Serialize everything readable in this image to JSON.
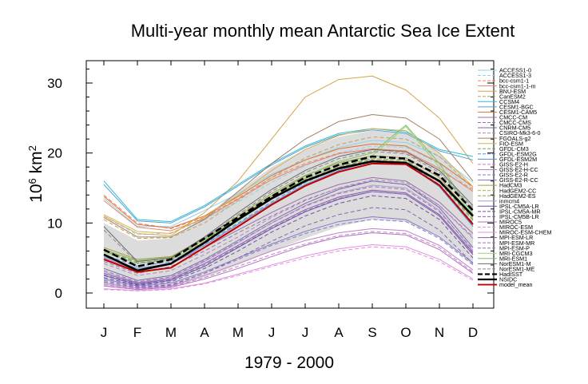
{
  "chart_data": {
    "type": "line",
    "title": "Multi-year monthly mean Antarctic Sea Ice Extent",
    "xlabel": "1979 - 2000",
    "ylabel": "10⁶ km²",
    "categories": [
      "J",
      "F",
      "M",
      "A",
      "M",
      "J",
      "J",
      "A",
      "S",
      "O",
      "N",
      "D"
    ],
    "yticks": [
      0,
      10,
      20,
      30
    ],
    "ylim": [
      0,
      30
    ],
    "legend_position": "right",
    "series": [
      {
        "name": "ACCESS1-0",
        "color": "#8fd3e8",
        "dash": false,
        "values": [
          13.5,
          9.5,
          9.5,
          11.8,
          14.2,
          17.0,
          19.0,
          20.8,
          21.8,
          21.5,
          19.5,
          15.8
        ]
      },
      {
        "name": "ACCESS1-3",
        "color": "#8fd3e8",
        "dash": true,
        "values": [
          11.0,
          8.3,
          8.6,
          10.5,
          13.0,
          15.8,
          18.2,
          20.0,
          21.0,
          20.8,
          18.5,
          14.5
        ]
      },
      {
        "name": "bcc-csm1-1",
        "color": "#e8856a",
        "dash": true,
        "values": [
          14.0,
          10.0,
          9.2,
          10.8,
          13.5,
          16.5,
          18.5,
          20.0,
          20.5,
          20.0,
          17.5,
          14.8
        ]
      },
      {
        "name": "bcc-csm1-1-m",
        "color": "#e8856a",
        "dash": false,
        "values": [
          13.2,
          9.4,
          8.9,
          10.6,
          13.4,
          16.2,
          18.3,
          19.9,
          20.6,
          20.3,
          17.8,
          14.5
        ]
      },
      {
        "name": "BNU-ESM",
        "color": "#d4a64a",
        "dash": false,
        "values": [
          11.0,
          8.5,
          8.2,
          11.5,
          16.0,
          22.0,
          28.0,
          30.5,
          31.0,
          29.0,
          25.0,
          18.5
        ]
      },
      {
        "name": "CanESM2",
        "color": "#c4a060",
        "dash": true,
        "values": [
          10.5,
          7.8,
          7.9,
          10.0,
          13.2,
          16.5,
          19.3,
          21.2,
          22.3,
          22.0,
          19.5,
          15.0
        ]
      },
      {
        "name": "CCSM4",
        "color": "#2bbcd6",
        "dash": false,
        "values": [
          16.0,
          10.5,
          10.2,
          12.5,
          15.5,
          18.5,
          21.0,
          22.8,
          23.5,
          23.0,
          20.5,
          19.5
        ]
      },
      {
        "name": "CESM1-BGC",
        "color": "#5a9fd4",
        "dash": false,
        "values": [
          15.5,
          10.3,
          10.0,
          12.3,
          15.3,
          18.3,
          20.8,
          22.6,
          23.3,
          22.8,
          20.3,
          19.0
        ]
      },
      {
        "name": "CESM1-CAM5",
        "color": "#e07030",
        "dash": false,
        "values": [
          13.8,
          9.8,
          9.3,
          11.0,
          13.8,
          16.8,
          19.0,
          20.6,
          21.3,
          21.0,
          18.6,
          15.2
        ]
      },
      {
        "name": "CMCC-CM",
        "color": "#9b6fb0",
        "dash": false,
        "values": [
          5.0,
          3.2,
          4.2,
          6.5,
          9.0,
          11.5,
          13.8,
          15.5,
          16.5,
          16.0,
          13.0,
          8.5
        ]
      },
      {
        "name": "CMCC-CMS",
        "color": "#9b6fb0",
        "dash": true,
        "values": [
          4.5,
          2.8,
          3.8,
          6.0,
          8.6,
          11.0,
          13.3,
          15.0,
          16.0,
          15.5,
          12.5,
          8.0
        ]
      },
      {
        "name": "CNRM-CM5",
        "color": "#7a6aa8",
        "dash": false,
        "values": [
          3.5,
          1.8,
          2.5,
          4.8,
          7.5,
          10.3,
          12.8,
          14.8,
          16.0,
          15.5,
          12.2,
          6.5
        ]
      },
      {
        "name": "CSIRO-Mk3-6-0",
        "color": "#b088c0",
        "dash": true,
        "values": [
          4.2,
          2.5,
          3.2,
          5.5,
          8.0,
          10.8,
          13.2,
          15.0,
          16.2,
          15.8,
          12.5,
          7.8
        ]
      },
      {
        "name": "FGOALS-g2",
        "color": "#a08060",
        "dash": false,
        "values": [
          10.8,
          8.0,
          8.0,
          10.5,
          14.5,
          18.5,
          22.0,
          24.5,
          25.5,
          25.0,
          22.0,
          16.0
        ]
      },
      {
        "name": "FIO-ESM",
        "color": "#d8b050",
        "dash": false,
        "values": [
          11.2,
          8.8,
          8.5,
          10.8,
          14.0,
          17.5,
          20.5,
          22.5,
          23.5,
          23.2,
          20.0,
          15.2
        ]
      },
      {
        "name": "GFDL-CM3",
        "color": "#6aa86a",
        "dash": true,
        "values": [
          6.0,
          4.5,
          5.0,
          7.5,
          10.5,
          13.5,
          16.0,
          18.0,
          19.2,
          19.0,
          16.0,
          10.5
        ]
      },
      {
        "name": "GFDL-ESM2G",
        "color": "#5a8ad4",
        "dash": true,
        "values": [
          5.5,
          3.8,
          4.5,
          7.0,
          10.0,
          13.0,
          15.8,
          17.8,
          19.0,
          18.6,
          15.5,
          10.0
        ]
      },
      {
        "name": "GFDL-ESM2M",
        "color": "#5a8ad4",
        "dash": false,
        "values": [
          5.2,
          3.5,
          4.2,
          6.8,
          9.8,
          12.8,
          15.5,
          17.5,
          18.8,
          18.5,
          15.2,
          9.5
        ]
      },
      {
        "name": "GISS-E2-H",
        "color": "#c080c8",
        "dash": true,
        "values": [
          1.2,
          0.6,
          0.9,
          2.2,
          3.8,
          5.5,
          7.0,
          8.2,
          8.8,
          8.5,
          6.5,
          3.0
        ]
      },
      {
        "name": "GISS-E2-H-CC",
        "color": "#c080c8",
        "dash": false,
        "values": [
          1.4,
          0.7,
          1.0,
          2.5,
          4.2,
          6.0,
          7.5,
          8.6,
          9.2,
          8.9,
          6.8,
          3.3
        ]
      },
      {
        "name": "GISS-E2-R",
        "color": "#8a7ac8",
        "dash": true,
        "values": [
          1.8,
          0.9,
          1.2,
          2.8,
          4.8,
          6.8,
          8.5,
          9.8,
          10.5,
          10.2,
          7.8,
          4.0
        ]
      },
      {
        "name": "GISS-E2-R-CC",
        "color": "#8a7ac8",
        "dash": false,
        "values": [
          2.0,
          1.0,
          1.4,
          3.0,
          5.0,
          7.0,
          8.8,
          10.2,
          10.9,
          10.5,
          8.0,
          4.3
        ]
      },
      {
        "name": "HadCM3",
        "color": "#a0a040",
        "dash": false,
        "values": [
          6.5,
          4.8,
          5.2,
          7.8,
          11.0,
          14.2,
          16.8,
          18.6,
          19.6,
          19.3,
          16.5,
          11.0
        ]
      },
      {
        "name": "HadGEM2-CC",
        "color": "#b0b050",
        "dash": true,
        "values": [
          6.2,
          4.5,
          5.0,
          7.5,
          10.6,
          13.8,
          16.4,
          18.2,
          19.2,
          18.9,
          16.0,
          10.6
        ]
      },
      {
        "name": "HadGEM2-ES",
        "color": "#90a050",
        "dash": true,
        "values": [
          6.0,
          4.3,
          4.8,
          7.3,
          10.4,
          13.6,
          16.2,
          18.0,
          19.0,
          18.7,
          15.8,
          10.4
        ]
      },
      {
        "name": "inmcm4",
        "color": "#b098d0",
        "dash": false,
        "values": [
          3.0,
          1.5,
          2.2,
          4.5,
          7.2,
          10.0,
          12.5,
          14.3,
          15.4,
          15.0,
          11.8,
          6.0
        ]
      },
      {
        "name": "IPSL-CM5A-LR",
        "color": "#7050a8",
        "dash": false,
        "values": [
          2.5,
          1.2,
          1.8,
          3.8,
          6.5,
          9.2,
          11.6,
          13.4,
          14.5,
          14.1,
          11.0,
          5.5
        ]
      },
      {
        "name": "IPSL-CM5A-MR",
        "color": "#7050a8",
        "dash": true,
        "values": [
          2.2,
          1.1,
          1.6,
          3.5,
          6.0,
          8.7,
          11.0,
          12.8,
          13.9,
          13.5,
          10.5,
          5.0
        ]
      },
      {
        "name": "IPSL-CM5B-LR",
        "color": "#9060b8",
        "dash": true,
        "values": [
          1.6,
          0.8,
          1.1,
          2.8,
          5.0,
          7.4,
          9.6,
          11.2,
          12.2,
          11.9,
          9.0,
          4.2
        ]
      },
      {
        "name": "MIROC5",
        "color": "#b070c0",
        "dash": false,
        "values": [
          1.0,
          0.5,
          0.8,
          2.0,
          3.5,
          5.2,
          6.8,
          8.0,
          8.6,
          8.3,
          6.2,
          2.8
        ]
      },
      {
        "name": "MIROC-ESM",
        "color": "#e090e0",
        "dash": true,
        "values": [
          0.5,
          0.3,
          0.5,
          1.3,
          2.5,
          3.8,
          5.0,
          6.0,
          6.6,
          6.3,
          4.5,
          1.8
        ]
      },
      {
        "name": "MIROC-ESM-CHEM",
        "color": "#e090e0",
        "dash": false,
        "values": [
          0.6,
          0.35,
          0.6,
          1.4,
          2.7,
          4.0,
          5.3,
          6.3,
          6.9,
          6.6,
          4.8,
          2.0
        ]
      },
      {
        "name": "MPI-ESM-LR",
        "color": "#8a5aa8",
        "dash": false,
        "values": [
          2.8,
          1.4,
          2.0,
          4.2,
          6.8,
          9.5,
          11.9,
          13.7,
          14.7,
          14.3,
          11.2,
          5.8
        ]
      },
      {
        "name": "MPI-ESM-MR",
        "color": "#a070b8",
        "dash": true,
        "values": [
          3.2,
          1.6,
          2.3,
          4.6,
          7.3,
          10.0,
          12.4,
          14.2,
          15.2,
          14.8,
          11.6,
          6.2
        ]
      },
      {
        "name": "MPI-ESM-P",
        "color": "#8a70c0",
        "dash": true,
        "values": [
          2.6,
          1.3,
          1.9,
          4.0,
          6.6,
          9.3,
          11.7,
          13.5,
          14.5,
          14.1,
          11.0,
          5.6
        ]
      },
      {
        "name": "MRI-CGCM3",
        "color": "#9ad080",
        "dash": false,
        "values": [
          5.8,
          4.2,
          4.7,
          7.2,
          10.3,
          13.5,
          16.3,
          18.4,
          19.6,
          23.8,
          18.0,
          10.8
        ]
      },
      {
        "name": "MRI-ESM1",
        "color": "#80c060",
        "dash": false,
        "values": [
          6.2,
          4.6,
          5.1,
          7.6,
          10.7,
          13.9,
          16.7,
          18.8,
          20.0,
          24.0,
          18.5,
          11.2
        ]
      },
      {
        "name": "NorESM1-M",
        "color": "#6a6a6a",
        "dash": false,
        "values": [
          9.5,
          4.5,
          5.0,
          8.0,
          11.5,
          14.8,
          17.5,
          19.5,
          20.5,
          20.2,
          17.5,
          12.5
        ]
      },
      {
        "name": "NorESM1-ME",
        "color": "#8a8a8a",
        "dash": true,
        "values": [
          9.0,
          4.3,
          4.8,
          7.8,
          11.2,
          14.5,
          17.2,
          19.2,
          20.2,
          19.9,
          17.2,
          12.2
        ]
      },
      {
        "name": "HadISST",
        "color": "#000000",
        "dash": true,
        "values": [
          6.2,
          3.8,
          4.8,
          7.8,
          10.8,
          13.8,
          16.5,
          18.3,
          19.5,
          19.2,
          16.8,
          11.8
        ]
      },
      {
        "name": "NSIDC",
        "color": "#000000",
        "dash": false,
        "values": [
          5.5,
          3.2,
          4.2,
          7.2,
          10.5,
          13.5,
          16.0,
          17.8,
          18.8,
          18.6,
          16.0,
          11.0
        ]
      },
      {
        "name": "model_mean",
        "color": "#c00000",
        "dash": false,
        "values": [
          4.8,
          3.0,
          3.6,
          6.5,
          9.5,
          12.6,
          15.3,
          17.3,
          18.5,
          18.4,
          15.4,
          9.8
        ]
      }
    ],
    "spread_band": {
      "lower": [
        1.0,
        0.6,
        0.9,
        2.2,
        4.0,
        6.0,
        7.8,
        9.5,
        10.5,
        10.2,
        8.0,
        4.0
      ],
      "upper": [
        10.0,
        7.5,
        7.8,
        11.0,
        14.5,
        18.0,
        20.5,
        22.3,
        23.2,
        22.8,
        20.0,
        15.0
      ]
    }
  }
}
